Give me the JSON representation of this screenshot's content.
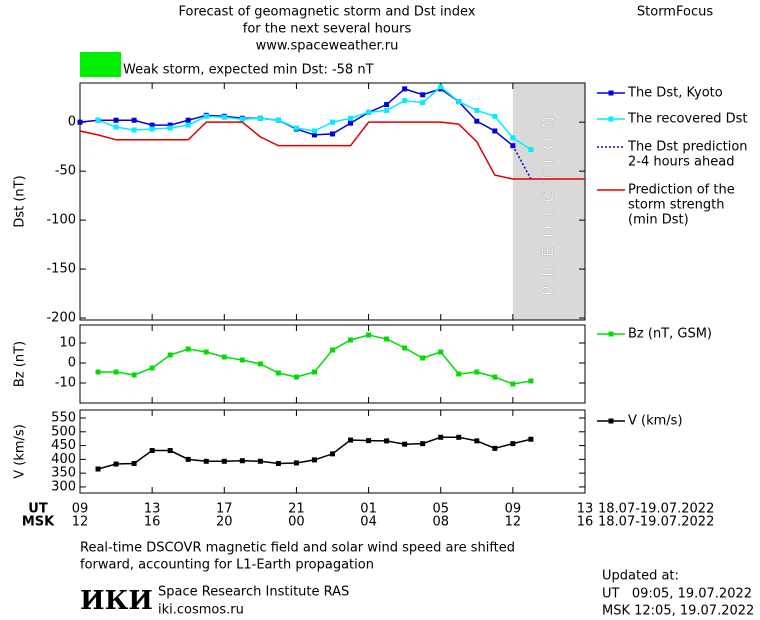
{
  "header": {
    "title_lines": [
      "Forecast of geomagnetic storm and Dst index",
      "for the next several hours",
      "www.spaceweather.ru"
    ],
    "brand": "StormFocus",
    "storm_color": "#00ee00",
    "storm_text": "Weak storm, expected min Dst: -58 nT"
  },
  "chart_data": [
    {
      "type": "line",
      "ylabel": "Dst (nT)",
      "xlim": [
        0,
        28
      ],
      "xticks": [
        0,
        4,
        8,
        12,
        16,
        20,
        24,
        28
      ],
      "ylim": [
        -202,
        40
      ],
      "yticks": [
        0,
        -50,
        -100,
        -150,
        -200
      ],
      "prediction_region": [
        24,
        28
      ],
      "prediction_label": "PREDICTION",
      "x": [
        0,
        1,
        2,
        3,
        4,
        5,
        6,
        7,
        8,
        9,
        10,
        11,
        12,
        13,
        14,
        15,
        16,
        17,
        18,
        19,
        20,
        21,
        22,
        23,
        24,
        25,
        26,
        27,
        28
      ],
      "series": [
        {
          "name": [
            "The Dst, Kyoto"
          ],
          "color": "#0000dd",
          "line_style": "solid",
          "markers": true,
          "values": [
            0,
            2,
            2,
            2,
            -3,
            -3,
            2,
            7,
            6,
            4,
            4,
            2,
            -7,
            -13,
            -12,
            -1,
            10,
            18,
            34,
            28,
            34,
            21,
            1,
            -9,
            -24,
            null,
            null,
            null,
            null
          ]
        },
        {
          "name": [
            "The recovered Dst"
          ],
          "color": "#00eeff",
          "line_style": "solid",
          "markers": true,
          "values": [
            null,
            2,
            -5,
            -8,
            -7,
            -6,
            -3,
            6,
            5,
            3,
            4,
            2,
            -6,
            -9,
            0,
            4,
            10,
            12,
            22,
            20,
            36,
            21,
            12,
            6,
            -16,
            -28,
            null,
            null,
            null
          ]
        },
        {
          "name": [
            "The Dst prediction",
            "2-4 hours ahead"
          ],
          "color": "#0000dd",
          "line_style": "dotted",
          "markers": false,
          "values": [
            null,
            null,
            null,
            null,
            null,
            null,
            null,
            null,
            null,
            null,
            null,
            null,
            null,
            null,
            null,
            null,
            null,
            null,
            null,
            null,
            null,
            null,
            null,
            null,
            -24,
            -58,
            null,
            null,
            null
          ]
        },
        {
          "name": [
            "Prediction of the",
            "storm strength",
            "(min Dst)"
          ],
          "color": "#dd0000",
          "line_style": "solid",
          "markers": false,
          "values": [
            -9,
            -13,
            -18,
            -18,
            -18,
            -18,
            -18,
            0,
            0,
            0,
            -15,
            -24,
            -24,
            -24,
            -24,
            -24,
            0,
            0,
            0,
            0,
            0,
            -2,
            -20,
            -54,
            -58,
            -58,
            -58,
            -58,
            -58
          ]
        }
      ]
    },
    {
      "type": "line",
      "ylabel": "Bz (nT)",
      "xlim": [
        0,
        28
      ],
      "xticks": [
        0,
        4,
        8,
        12,
        16,
        20,
        24,
        28
      ],
      "ylim": [
        -20,
        19
      ],
      "yticks": [
        10,
        0,
        -10
      ],
      "x": [
        1,
        2,
        3,
        4,
        5,
        6,
        7,
        8,
        9,
        10,
        11,
        12,
        13,
        14,
        15,
        16,
        17,
        18,
        19,
        20,
        21,
        22,
        23,
        24,
        25
      ],
      "series": [
        {
          "name": [
            "Bz (nT, GSM)"
          ],
          "color": "#00dd00",
          "line_style": "solid",
          "markers": true,
          "values": [
            -4.5,
            -4.5,
            -6,
            -2.5,
            4,
            7,
            5.5,
            3,
            1.5,
            -0.5,
            -5,
            -7,
            -4.5,
            6.5,
            11.5,
            14,
            12,
            7.5,
            2.5,
            5.5,
            -5.5,
            -4.5,
            -7,
            -10.5,
            -9
          ]
        }
      ]
    },
    {
      "type": "line",
      "ylabel": "V (km/s)",
      "xlim": [
        0,
        28
      ],
      "xticks": [
        {
          "value": 0,
          "label": "09"
        },
        {
          "value": 4,
          "label": "13"
        },
        {
          "value": 8,
          "label": "17"
        },
        {
          "value": 12,
          "label": "21"
        },
        {
          "value": 16,
          "label": "01"
        },
        {
          "value": 20,
          "label": "05"
        },
        {
          "value": 24,
          "label": "09"
        },
        {
          "value": 28,
          "label": "13"
        }
      ],
      "msk_ticks": [
        {
          "value": 0,
          "label": "12"
        },
        {
          "value": 4,
          "label": "16"
        },
        {
          "value": 8,
          "label": "20"
        },
        {
          "value": 12,
          "label": "00"
        },
        {
          "value": 16,
          "label": "04"
        },
        {
          "value": 20,
          "label": "08"
        },
        {
          "value": 24,
          "label": "12"
        },
        {
          "value": 28,
          "label": "16"
        }
      ],
      "ylim": [
        278,
        579
      ],
      "yticks": [
        300,
        350,
        400,
        450,
        500,
        550
      ],
      "x": [
        1,
        2,
        3,
        4,
        5,
        6,
        7,
        8,
        9,
        10,
        11,
        12,
        13,
        14,
        15,
        16,
        17,
        18,
        19,
        20,
        21,
        22,
        23,
        24,
        25
      ],
      "series": [
        {
          "name": [
            "V (km/s)"
          ],
          "color": "#000000",
          "line_style": "solid",
          "markers": true,
          "values": [
            365,
            383,
            385,
            432,
            432,
            400,
            393,
            393,
            395,
            393,
            385,
            387,
            398,
            420,
            470,
            468,
            467,
            455,
            457,
            480,
            480,
            467,
            440,
            457,
            473
          ]
        }
      ]
    }
  ],
  "time_axis": {
    "ut_label": "UT",
    "msk_label": "MSK",
    "ut_dates": "18.07-19.07.2022",
    "msk_dates": "18.07-19.07.2022"
  },
  "footer": {
    "note_lines": [
      "Real-time DSCOVR magnetic field and solar wind speed are shifted",
      "forward, accounting for L1-Earth propagation"
    ],
    "logo": "ИКИ",
    "institute": "Space Research Institute RAS",
    "site": "iki.cosmos.ru",
    "updated_label": "Updated at:",
    "updated_ut": "UT   09:05, 19.07.2022",
    "updated_msk": "MSK 12:05, 19.07.2022"
  }
}
